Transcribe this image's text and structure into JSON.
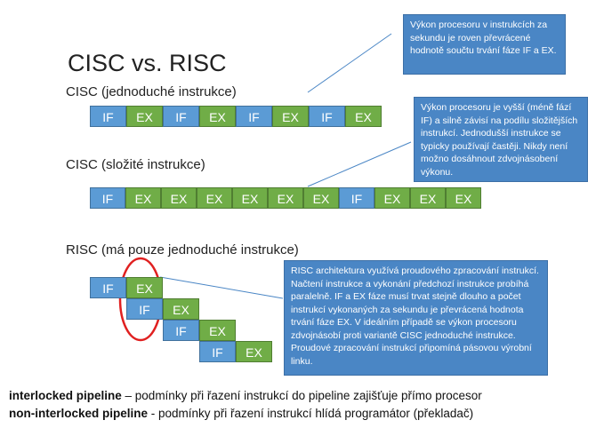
{
  "title": "CISC vs. RISC",
  "cisc_simple": {
    "label": "CISC (jednoduché instrukce)",
    "blocks": [
      "IF",
      "EX",
      "IF",
      "EX",
      "IF",
      "EX",
      "IF",
      "EX"
    ]
  },
  "cisc_complex": {
    "label": "CISC (složité instrukce)",
    "blocks": [
      "IF",
      "EX",
      "EX",
      "EX",
      "EX",
      "EX",
      "EX",
      "IF",
      "EX",
      "EX",
      "EX"
    ]
  },
  "risc": {
    "label": "RISC (má pouze jednoduché instrukce)",
    "rows": [
      [
        "IF",
        "EX"
      ],
      [
        "IF",
        "EX"
      ],
      [
        "IF",
        "EX"
      ],
      [
        "IF",
        "EX"
      ]
    ]
  },
  "callouts": {
    "top": "Výkon procesoru v instrukcích za sekundu je roven převrácené hodnotě součtu trvání fáze IF a EX.",
    "middle": "Výkon procesoru je vyšší  (méně fází IF) a silně závisí na podílu složitějších instrukcí. Jednodušší instrukce se typicky používají častěji. Nikdy není možno dosáhnout zdvojnásobení výkonu.",
    "bottom": "RISC architektura využívá proudového zpracování instrukcí. Načtení instrukce a vykonání předchozí instrukce probíhá paralelně. IF a EX fáze musí trvat stejně dlouho a počet instrukcí vykonaných za sekundu je převrácená hodnota trvání fáze EX. V ideálním případě se výkon procesoru zdvojnásobí proti variantě CISC jednoduché instrukce. Proudové zpracování instrukcí připomíná pásovou výrobní linku."
  },
  "footer": {
    "line1_bold": "interlocked pipeline",
    "line1_rest": " – podmínky při řazení instrukcí do pipeline zajišťuje přímo procesor",
    "line2_bold": "non-interlocked pipeline",
    "line2_rest": " - podmínky při řazení instrukcí  hlídá programátor (překladač)"
  },
  "colors": {
    "if": "#5b9bd5",
    "ex": "#70ad47",
    "callout": "#4a86c5",
    "highlight": "#e02020"
  }
}
